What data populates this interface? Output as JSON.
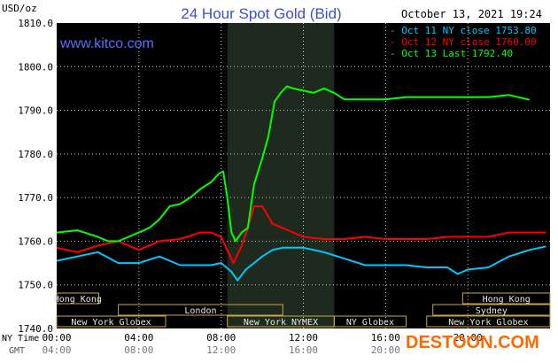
{
  "header": {
    "title": "24 Hour Spot Gold (Bid)",
    "timestamp": "October 13, 2021 19:24",
    "unit_label": "USD/oz",
    "website": "www.kitco.com",
    "watermark": "DESTOON.COM"
  },
  "axis_labels": {
    "ny_time": "NY Time",
    "gmt": "GMT"
  },
  "legend": [
    {
      "text": "Oct 11 NY close 1753.80",
      "color": "#00c8ff"
    },
    {
      "text": "Oct 12 NY close 1760.00",
      "color": "#ff0000"
    },
    {
      "text": "Oct 13 Last 1792.40",
      "color": "#00ff00"
    }
  ],
  "markets": [
    {
      "label": "Hong Kong",
      "row": 0,
      "start": 0,
      "end": 2.05
    },
    {
      "label": "Hong Kong",
      "row": 0,
      "start": 19.75,
      "end": 24
    },
    {
      "label": "London",
      "row": 1,
      "start": 3.0,
      "end": 11.0
    },
    {
      "label": "Sydney",
      "row": 1,
      "start": 18.3,
      "end": 24
    },
    {
      "label": "New York Globex",
      "row": 2,
      "start": 0,
      "end": 5.3
    },
    {
      "label": "New York NYMEX",
      "row": 2,
      "start": 8.3,
      "end": 13.5
    },
    {
      "label": "NY Globex",
      "row": 2,
      "start": 13.5,
      "end": 17.0
    },
    {
      "label": "New York Globex",
      "row": 2,
      "start": 18.0,
      "end": 24
    }
  ],
  "chart_data": {
    "type": "line",
    "title": "24 Hour Spot Gold (Bid)",
    "ylabel": "USD/oz",
    "ylim": [
      1740,
      1810
    ],
    "xlim": [
      0,
      24
    ],
    "yticks": [
      "1740.0",
      "1750.0",
      "1760.0",
      "1770.0",
      "1780.0",
      "1790.0",
      "1800.0",
      "1810.0"
    ],
    "xticks_ny": [
      "00:00",
      "04:00",
      "08:00",
      "12:00",
      "16:00",
      "20:00"
    ],
    "xticks_gmt": [
      "04:00",
      "08:00",
      "12:00",
      "16:00",
      "20:00"
    ],
    "grid": true,
    "shaded_range_hours": [
      8.3,
      13.5
    ],
    "series": [
      {
        "name": "Oct 11 NY close 1753.80",
        "color": "#00c8ff",
        "x": [
          0,
          1,
          2,
          3,
          4,
          5,
          6,
          7,
          7.5,
          8,
          8.5,
          8.8,
          9.2,
          9.6,
          10,
          10.5,
          11,
          12,
          13,
          14,
          15,
          16,
          17,
          18,
          19,
          19.5,
          20,
          21,
          22,
          23,
          23.8
        ],
        "y": [
          1755.5,
          1756.5,
          1757.5,
          1755,
          1755,
          1756.5,
          1754.5,
          1754.5,
          1754.5,
          1755,
          1753,
          1751,
          1753.5,
          1755,
          1756.5,
          1758,
          1758.5,
          1758.5,
          1757.5,
          1756,
          1754.5,
          1754.5,
          1754.5,
          1754,
          1754,
          1752.5,
          1753.5,
          1754,
          1756.5,
          1758,
          1758.8
        ]
      },
      {
        "name": "Oct 12 NY close 1760.00",
        "color": "#ff0000",
        "x": [
          0,
          1,
          2,
          3,
          4,
          5,
          6,
          7,
          7.5,
          8,
          8.3,
          8.6,
          9,
          9.3,
          9.6,
          10,
          10.5,
          11,
          12,
          13,
          14,
          15,
          16,
          17,
          18,
          19,
          20,
          21,
          22,
          23,
          23.8
        ],
        "y": [
          1758.5,
          1757.5,
          1759,
          1760,
          1758,
          1760,
          1760.5,
          1762,
          1762,
          1761,
          1758,
          1755,
          1759,
          1763,
          1768,
          1768,
          1764,
          1763,
          1761,
          1760.5,
          1760.5,
          1761,
          1760.5,
          1760.5,
          1760.5,
          1761,
          1761,
          1761,
          1762,
          1762,
          1762
        ]
      },
      {
        "name": "Oct 13 Last 1792.40",
        "color": "#00ff00",
        "x": [
          0,
          1,
          2,
          2.5,
          3,
          3.5,
          4,
          4.5,
          5,
          5.5,
          6,
          6.5,
          7,
          7.5,
          7.9,
          8.1,
          8.3,
          8.5,
          8.7,
          9,
          9.3,
          9.6,
          10,
          10.3,
          10.6,
          10.9,
          11.2,
          11.5,
          12,
          12.5,
          13,
          13.5,
          14,
          15,
          16,
          17,
          18,
          19,
          20,
          21,
          22,
          23
        ],
        "y": [
          1762,
          1762.5,
          1761,
          1760,
          1760,
          1761,
          1762,
          1763,
          1765,
          1768,
          1768.5,
          1770,
          1772,
          1773.5,
          1775.5,
          1776,
          1770,
          1762,
          1760,
          1762,
          1763,
          1773,
          1779,
          1784,
          1792,
          1794,
          1795.5,
          1795,
          1794.5,
          1794,
          1795,
          1794,
          1792.5,
          1792.5,
          1792.5,
          1793,
          1793,
          1793,
          1793,
          1793,
          1793.5,
          1792.4
        ]
      }
    ]
  }
}
